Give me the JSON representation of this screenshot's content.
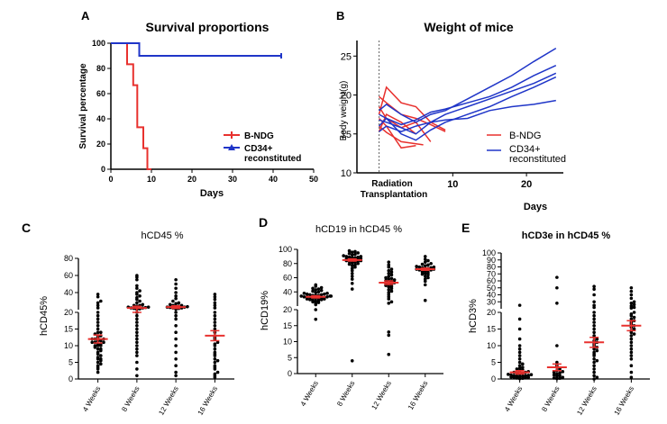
{
  "chart_data": [
    {
      "panel": "A",
      "type": "line",
      "title": "Survival proportions",
      "xlabel": "Days",
      "ylabel": "Survival percentage",
      "xlim": [
        0,
        50
      ],
      "ylim": [
        0,
        100
      ],
      "xticks": [
        0,
        10,
        20,
        30,
        40,
        50
      ],
      "yticks": [
        0,
        20,
        40,
        60,
        80,
        100
      ],
      "legend_position": "right",
      "series": [
        {
          "name": "B-NDG",
          "color": "#e8312e",
          "x": [
            0,
            4,
            4,
            5.5,
            5.5,
            6.5,
            6.5,
            8,
            8,
            9,
            9,
            10
          ],
          "y": [
            100,
            100,
            83.3,
            83.3,
            66.7,
            66.7,
            33.3,
            33.3,
            16.7,
            16.7,
            0,
            0
          ]
        },
        {
          "name": "CD34+ reconstituted",
          "color": "#1f35c8",
          "x": [
            0,
            7,
            7,
            42
          ],
          "y": [
            100,
            100,
            90,
            90
          ]
        }
      ]
    },
    {
      "panel": "B",
      "type": "line",
      "title": "Weight of mice",
      "xlabel": "Days",
      "ylabel": "Body weight(g)",
      "xlim": [
        -3,
        25
      ],
      "ylim": [
        10,
        27
      ],
      "xticks": [
        10,
        20
      ],
      "yticks": [
        10,
        15,
        20,
        25
      ],
      "annotation": "Radiation Transplantation",
      "legend_position": "right",
      "series": [
        {
          "name": "B-NDG",
          "color": "#e8312e",
          "x": [
            0,
            1,
            3,
            5,
            7,
            9
          ],
          "y": [
            17.5,
            21,
            19,
            18.5,
            16.5,
            15.5
          ]
        },
        {
          "name": "",
          "color": "#e8312e",
          "x": [
            0,
            1,
            3,
            5,
            7,
            9
          ],
          "y": [
            19.8,
            19.0,
            17.5,
            17.0,
            16.2,
            15.3
          ]
        },
        {
          "name": "",
          "color": "#e8312e",
          "x": [
            0,
            1,
            3,
            5,
            7
          ],
          "y": [
            18.5,
            17.0,
            15.8,
            16.5,
            14.0
          ]
        },
        {
          "name": "",
          "color": "#e8312e",
          "x": [
            0,
            1,
            3,
            5
          ],
          "y": [
            17.0,
            16.0,
            13.2,
            13.5
          ]
        },
        {
          "name": "",
          "color": "#e8312e",
          "x": [
            0,
            1,
            3,
            6
          ],
          "y": [
            16.0,
            15.2,
            14.0,
            13.6
          ]
        },
        {
          "name": "",
          "color": "#e8312e",
          "x": [
            0,
            1,
            3,
            5
          ],
          "y": [
            15.3,
            17.5,
            16.5,
            15.0
          ]
        },
        {
          "name": "CD34+ reconstituted",
          "color": "#1f35c8",
          "x": [
            0,
            1,
            3,
            5,
            7,
            9,
            12,
            15,
            18,
            21,
            24
          ],
          "y": [
            18.0,
            18.8,
            17.5,
            16.5,
            17.5,
            18.0,
            19.5,
            21.0,
            22.5,
            24.3,
            26.0
          ]
        },
        {
          "name": "",
          "color": "#1f35c8",
          "x": [
            0,
            1,
            3,
            5,
            7,
            9,
            12,
            15,
            18,
            21,
            24
          ],
          "y": [
            17.5,
            17.0,
            16.2,
            16.8,
            17.8,
            18.2,
            19.0,
            19.8,
            21.0,
            22.5,
            23.8
          ]
        },
        {
          "name": "",
          "color": "#1f35c8",
          "x": [
            0,
            1,
            3,
            5,
            7,
            9,
            12,
            15,
            18,
            21,
            24
          ],
          "y": [
            16.8,
            16.5,
            15.8,
            15.0,
            16.5,
            17.5,
            18.5,
            19.5,
            20.5,
            21.5,
            22.8
          ]
        },
        {
          "name": "",
          "color": "#1f35c8",
          "x": [
            0,
            1,
            3,
            5,
            7,
            9,
            12,
            15,
            18,
            21,
            24
          ],
          "y": [
            16.0,
            17.0,
            15.0,
            14.2,
            15.5,
            16.5,
            17.5,
            18.5,
            19.8,
            21.0,
            22.3
          ]
        },
        {
          "name": "",
          "color": "#1f35c8",
          "x": [
            0,
            1,
            3,
            5,
            7,
            9,
            12,
            15,
            18,
            21,
            24
          ],
          "y": [
            15.3,
            16.0,
            15.3,
            16.0,
            16.5,
            16.8,
            17.0,
            18.0,
            18.5,
            18.8,
            19.3
          ]
        }
      ]
    },
    {
      "panel": "C",
      "type": "scatter",
      "title": "hCD45 %",
      "ylabel": "hCD45%",
      "categories": [
        "4 Weeks",
        "8 Weeks",
        "12 Weeks",
        "16 Weeks"
      ],
      "y_axis_break": {
        "lower": [
          0,
          20
        ],
        "upper": [
          20,
          80
        ]
      },
      "yticks": [
        0,
        5,
        10,
        15,
        20,
        40,
        60,
        80
      ],
      "mean": [
        12,
        22,
        23,
        13
      ],
      "sem": [
        1.2,
        2,
        1.5,
        1.5
      ],
      "points": [
        [
          2,
          3,
          3.5,
          4,
          4.5,
          5,
          5.5,
          6,
          6,
          6.5,
          7,
          7.5,
          8,
          8.5,
          9,
          9,
          9.5,
          10,
          10,
          10,
          10.5,
          10.5,
          11,
          11,
          11,
          11.5,
          11.5,
          12,
          12,
          12,
          12.5,
          13,
          13,
          13.5,
          14,
          14,
          15,
          16,
          17,
          18,
          19,
          20,
          22,
          25,
          28,
          30,
          35,
          38
        ],
        [
          1,
          3,
          5,
          7,
          8,
          9,
          10,
          11,
          12,
          13,
          14,
          15,
          16,
          17,
          18,
          19,
          20,
          20.5,
          21,
          21,
          21.5,
          22,
          22,
          22.5,
          23,
          23,
          24,
          25,
          25,
          26,
          28,
          30,
          32,
          34,
          36,
          38,
          40,
          42,
          45,
          48,
          55,
          58,
          60
        ],
        [
          1,
          2,
          4,
          6,
          8,
          10,
          12,
          14,
          16,
          18,
          19,
          20,
          20.5,
          21,
          21.5,
          22,
          22,
          22.5,
          23,
          23,
          23.5,
          24,
          24,
          25,
          25,
          26,
          27,
          28,
          30,
          33,
          36,
          40,
          45,
          50,
          55
        ],
        [
          0.5,
          1,
          1.5,
          2,
          3,
          3.5,
          4,
          5,
          5.5,
          6,
          7,
          7.5,
          8,
          9,
          10,
          10.5,
          11,
          12,
          12.5,
          13,
          14,
          15,
          16,
          17,
          18,
          19,
          20,
          22,
          25,
          28,
          32,
          35,
          38
        ]
      ]
    },
    {
      "panel": "D",
      "type": "scatter",
      "title": "hCD19 in hCD45 %",
      "ylabel": "hCD19%",
      "categories": [
        "4 Weeks",
        "8 Weeks",
        "12 Weeks",
        "16 Weeks"
      ],
      "y_axis_break": {
        "lower": [
          0,
          20
        ],
        "upper": [
          20,
          100
        ]
      },
      "yticks": [
        0,
        5,
        10,
        15,
        20,
        40,
        60,
        80,
        100
      ],
      "mean": [
        33,
        85,
        53,
        72
      ],
      "sem": [
        1.5,
        1.5,
        2.5,
        1.5
      ],
      "points": [
        [
          17,
          20,
          22,
          24,
          25,
          26,
          27,
          28,
          28,
          29,
          29,
          30,
          30,
          31,
          31,
          31,
          32,
          32,
          32,
          33,
          33,
          33,
          34,
          34,
          34,
          35,
          35,
          35,
          36,
          36,
          37,
          37,
          38,
          38,
          39,
          40,
          41,
          42,
          43,
          44,
          45,
          46,
          48,
          50
        ],
        [
          4,
          44,
          52,
          58,
          62,
          66,
          70,
          73,
          75,
          77,
          78,
          79,
          80,
          81,
          82,
          83,
          83,
          84,
          84,
          85,
          85,
          86,
          86,
          87,
          87,
          88,
          88,
          89,
          89,
          90,
          90,
          91,
          92,
          93,
          94,
          95,
          96,
          97,
          98
        ],
        [
          6,
          12,
          13,
          24,
          26,
          30,
          33,
          36,
          39,
          41,
          43,
          45,
          47,
          48,
          49,
          50,
          51,
          52,
          53,
          54,
          55,
          56,
          57,
          58,
          59,
          60,
          62,
          64,
          66,
          68,
          70,
          72,
          75,
          78,
          82
        ],
        [
          28,
          50,
          55,
          58,
          60,
          62,
          64,
          65,
          66,
          67,
          68,
          69,
          70,
          70,
          71,
          71,
          72,
          72,
          73,
          73,
          74,
          74,
          75,
          75,
          76,
          77,
          78,
          79,
          80,
          82,
          84,
          86,
          90
        ]
      ]
    },
    {
      "panel": "E",
      "type": "scatter",
      "title": "hCD3e in hCD45 %",
      "ylabel": "hCD3%",
      "categories": [
        "4 Weeks",
        "8 Weeks",
        "12 Weeks",
        "16 Weeks"
      ],
      "y_axis_break": {
        "lower": [
          0,
          20
        ],
        "upper": [
          20,
          100
        ]
      },
      "yticks": [
        0,
        5,
        10,
        15,
        20,
        30,
        40,
        50,
        60,
        70,
        80,
        90,
        100
      ],
      "mean": [
        2,
        3.5,
        11,
        16
      ],
      "sem": [
        0.5,
        1,
        1.5,
        1.5
      ],
      "points": [
        [
          0.1,
          0.2,
          0.3,
          0.4,
          0.5,
          0.5,
          0.6,
          0.7,
          0.8,
          0.9,
          1,
          1,
          1.1,
          1.2,
          1.3,
          1.4,
          1.5,
          1.6,
          1.8,
          2,
          2,
          2.2,
          2.5,
          2.8,
          3,
          3.2,
          3.5,
          4,
          4.5,
          5,
          6,
          7,
          8,
          9,
          10,
          12,
          15,
          18,
          25
        ],
        [
          0.1,
          0.2,
          0.3,
          0.5,
          0.8,
          1,
          1.2,
          1.5,
          1.8,
          2,
          2.2,
          2.5,
          3,
          3.5,
          4,
          5,
          10,
          28,
          50,
          65
        ],
        [
          0,
          0.5,
          1,
          2,
          3,
          4,
          5,
          5.5,
          6,
          7,
          7.5,
          8,
          8.5,
          9,
          9.5,
          10,
          10.5,
          11,
          11.5,
          12,
          12.5,
          13,
          14,
          15,
          16,
          17,
          18,
          19,
          20,
          22,
          25,
          30,
          40,
          48,
          52
        ],
        [
          0.5,
          2,
          4,
          6,
          7,
          8,
          9,
          10,
          11,
          12,
          13,
          13.5,
          14,
          14.5,
          15,
          15.5,
          16,
          16.5,
          17,
          17.5,
          18,
          18.5,
          19,
          19.5,
          20,
          21,
          22,
          24,
          26,
          28,
          30,
          35,
          40,
          45,
          50
        ]
      ]
    }
  ],
  "panel_letters": {
    "a": "A",
    "b": "B",
    "c": "C",
    "d": "D",
    "e": "E"
  },
  "labels": {
    "radiation": "Radiation",
    "transplantation": "Transplantation",
    "legend_bndg": "B-NDG",
    "legend_cd34_line1": "CD34+",
    "legend_cd34_line2": "reconstituted"
  },
  "colors": {
    "red": "#e8312e",
    "blue": "#1f35c8",
    "axis": "#000000",
    "mean_bar": "#e8312e"
  }
}
